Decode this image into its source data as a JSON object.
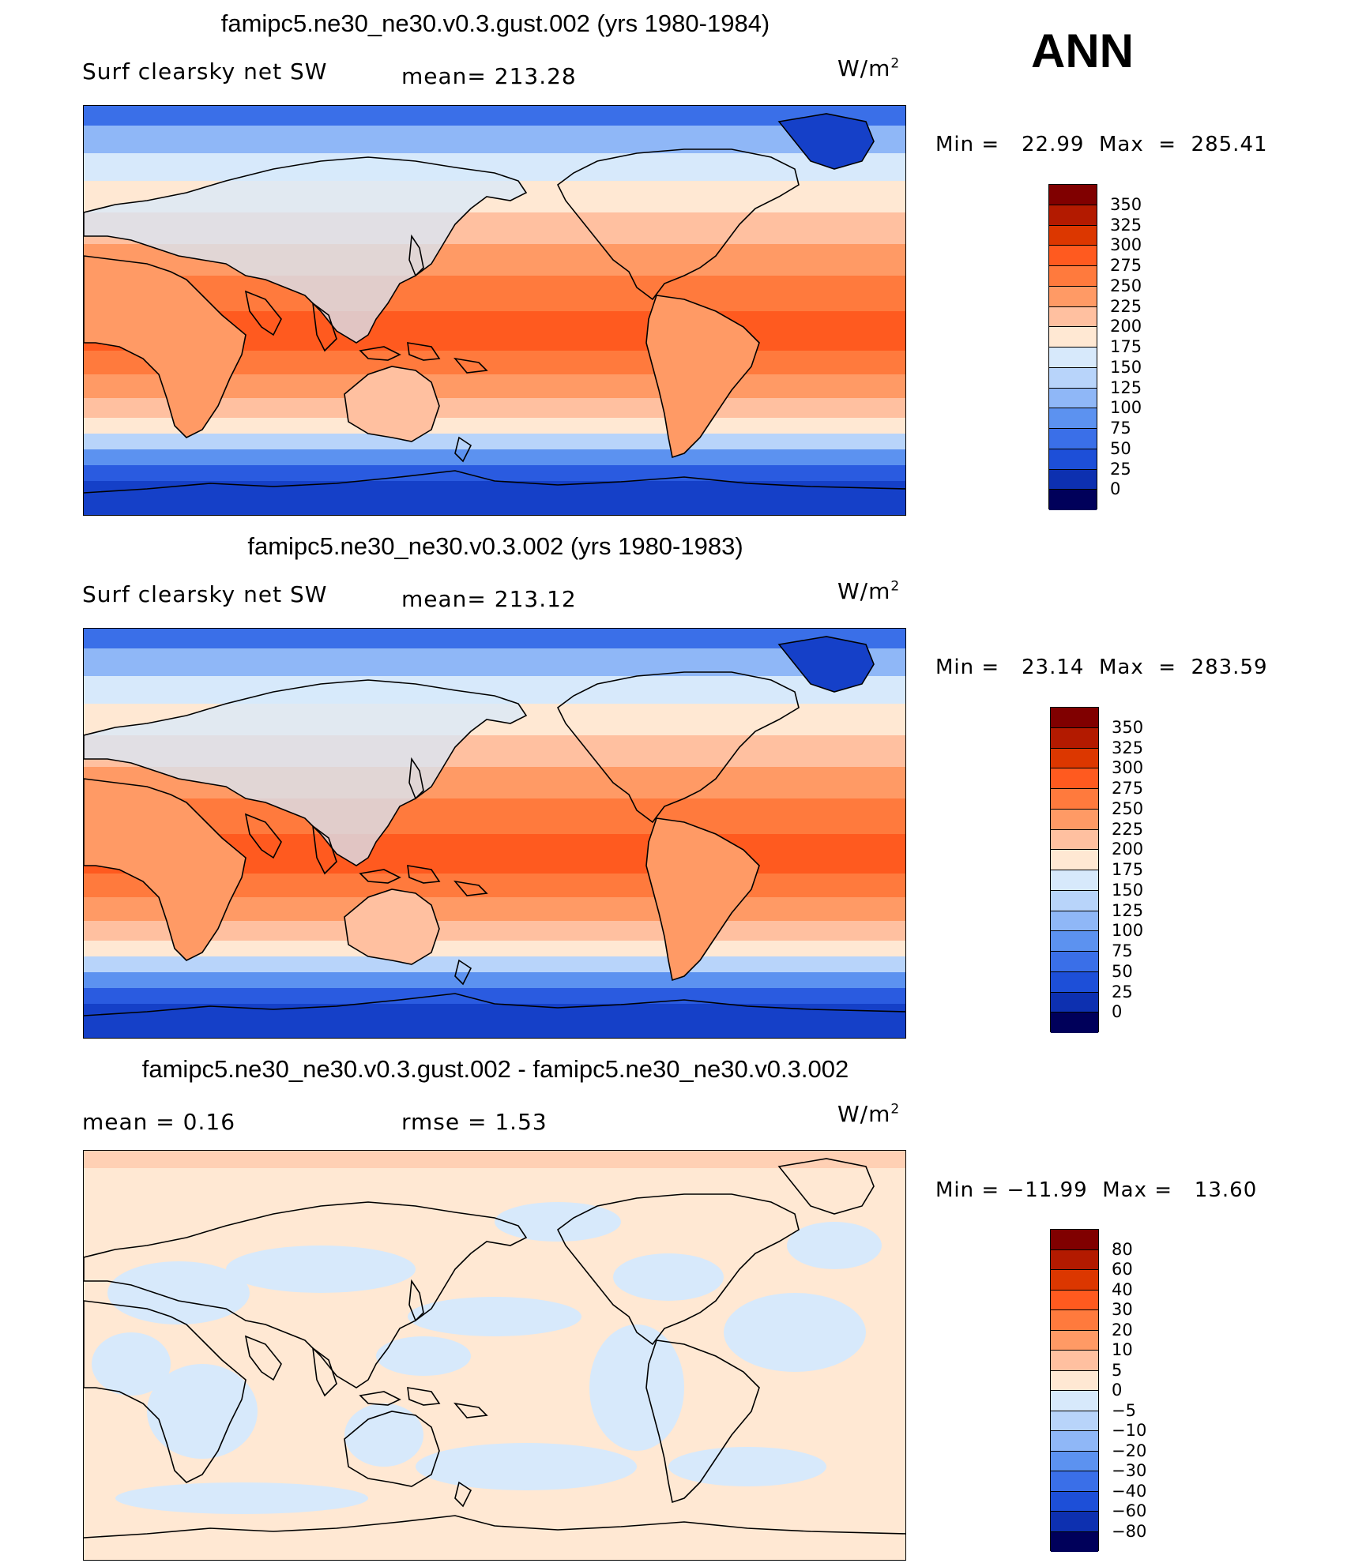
{
  "season": "ANN",
  "panels": [
    {
      "title": "famipc5.ne30_ne30.v0.3.gust.002 (yrs 1980-1984)",
      "left_label": "Surf clearsky net SW",
      "center_label": "mean= 213.28",
      "units": "W/m",
      "units_sup": "2",
      "min_text": "Min =   22.99",
      "max_text": "Max  =  285.41",
      "colorbar": {
        "colors": [
          "#800000",
          "#b31a00",
          "#dc3700",
          "#ff5a1f",
          "#ff7a3d",
          "#ff9a65",
          "#ffc0a0",
          "#ffe8d3",
          "#d7e9fb",
          "#b8d4fa",
          "#8fb7f7",
          "#5c92f0",
          "#3a6fe8",
          "#1d4fd8",
          "#0d30b0",
          "#00005a"
        ],
        "labels": [
          "350",
          "325",
          "300",
          "275",
          "250",
          "225",
          "200",
          "175",
          "150",
          "125",
          "100",
          "75",
          "50",
          "25",
          "0"
        ]
      }
    },
    {
      "title": "famipc5.ne30_ne30.v0.3.002 (yrs 1980-1983)",
      "left_label": "Surf clearsky net SW",
      "center_label": "mean= 213.12",
      "units": "W/m",
      "units_sup": "2",
      "min_text": "Min =   23.14",
      "max_text": "Max  =  283.59",
      "colorbar": {
        "colors": [
          "#800000",
          "#b31a00",
          "#dc3700",
          "#ff5a1f",
          "#ff7a3d",
          "#ff9a65",
          "#ffc0a0",
          "#ffe8d3",
          "#d7e9fb",
          "#b8d4fa",
          "#8fb7f7",
          "#5c92f0",
          "#3a6fe8",
          "#1d4fd8",
          "#0d30b0",
          "#00005a"
        ],
        "labels": [
          "350",
          "325",
          "300",
          "275",
          "250",
          "225",
          "200",
          "175",
          "150",
          "125",
          "100",
          "75",
          "50",
          "25",
          "0"
        ]
      }
    },
    {
      "title": "famipc5.ne30_ne30.v0.3.gust.002 - famipc5.ne30_ne30.v0.3.002",
      "left_label": "mean =     0.16",
      "center_label": "rmse =     1.53",
      "units": "W/m",
      "units_sup": "2",
      "min_text": "Min = −11.99",
      "max_text": "Max =   13.60",
      "colorbar": {
        "colors": [
          "#800000",
          "#b31a00",
          "#dc3700",
          "#ff5a1f",
          "#ff7a3d",
          "#ff9a65",
          "#ffc0a0",
          "#ffe8d3",
          "#d7e9fb",
          "#b8d4fa",
          "#8fb7f7",
          "#5c92f0",
          "#3a6fe8",
          "#1d4fd8",
          "#0d30b0",
          "#00005a"
        ],
        "labels": [
          "80",
          "60",
          "40",
          "30",
          "20",
          "10",
          "5",
          "0",
          "−5",
          "−10",
          "−20",
          "−30",
          "−40",
          "−60",
          "−80"
        ]
      }
    }
  ],
  "map_colors": {
    "antarctic": "#1540c8",
    "deep_south": "#2a5be0",
    "southern_ocean": "#5c92f0",
    "subpolar_s": "#b8d4fa",
    "light_s": "#ffe8d3",
    "mid_s": "#ffc0a0",
    "subtrop": "#ff9a65",
    "trop": "#ff7a3d",
    "eq": "#ff5a1f",
    "north_mid": "#ffc0a0",
    "north_light": "#d7e9fb",
    "north_blue": "#8fb7f7",
    "north_polar": "#3a6fe8",
    "land_tint": "#ffc0a0",
    "diff_pos": "#ffe8d3",
    "diff_neg": "#d7e9fb",
    "diff_strong": "#ffc0a0"
  }
}
